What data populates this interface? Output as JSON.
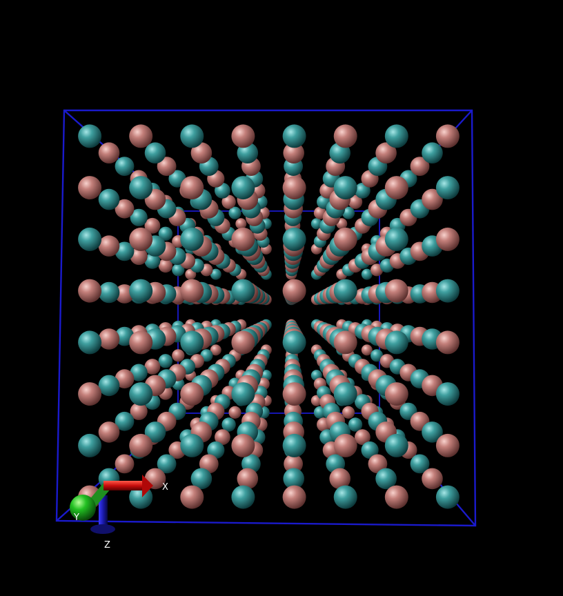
{
  "scene": {
    "background_color": "#000000",
    "box_color": "#1a1acc",
    "atom_types": {
      "teal": {
        "color": "#2f8f8f",
        "highlight": "#9fe0e0"
      },
      "pink": {
        "color": "#c47a76",
        "highlight": "#f4c9c4"
      }
    }
  },
  "axes": {
    "x_label": "X",
    "y_label": "Y",
    "z_label": "Z",
    "x_color": "#cc1111",
    "y_color": "#22bb22",
    "z_color": "#1a1aaa"
  }
}
